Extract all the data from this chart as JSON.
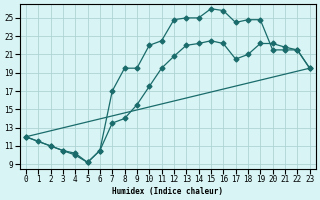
{
  "xlabel": "Humidex (Indice chaleur)",
  "background_color": "#d8f4f4",
  "grid_color": "#afd4d4",
  "line_color": "#1a6b6b",
  "xlim": [
    -0.5,
    23.5
  ],
  "ylim": [
    8.5,
    26.5
  ],
  "xticks": [
    0,
    1,
    2,
    3,
    4,
    5,
    6,
    7,
    8,
    9,
    10,
    11,
    12,
    13,
    14,
    15,
    16,
    17,
    18,
    19,
    20,
    21,
    22,
    23
  ],
  "yticks": [
    9,
    11,
    13,
    15,
    17,
    19,
    21,
    23,
    25
  ],
  "line1_x": [
    0,
    1,
    2,
    3,
    4,
    5,
    6,
    7,
    8,
    9,
    10,
    11,
    12,
    13,
    14,
    15,
    16,
    17,
    18,
    19,
    20,
    21,
    22,
    23
  ],
  "line1_y": [
    12.0,
    11.5,
    11.0,
    10.5,
    10.0,
    9.2,
    10.5,
    17.0,
    19.5,
    19.5,
    22.0,
    22.5,
    24.8,
    25.0,
    25.0,
    26.0,
    25.8,
    24.5,
    24.8,
    24.8,
    21.5,
    21.5,
    21.5,
    19.5
  ],
  "line2_x": [
    0,
    2,
    3,
    4,
    5,
    6,
    7,
    8,
    9,
    10,
    11,
    12,
    13,
    14,
    15,
    16,
    17,
    18,
    19,
    20,
    21,
    22,
    23
  ],
  "line2_y": [
    12.0,
    11.0,
    10.5,
    10.2,
    9.2,
    10.5,
    13.5,
    14.0,
    15.5,
    17.5,
    19.5,
    20.8,
    22.0,
    22.2,
    22.5,
    22.2,
    20.5,
    21.0,
    22.2,
    22.2,
    21.8,
    21.5,
    19.5
  ],
  "line3_x": [
    0,
    23
  ],
  "line3_y": [
    12.0,
    19.5
  ]
}
